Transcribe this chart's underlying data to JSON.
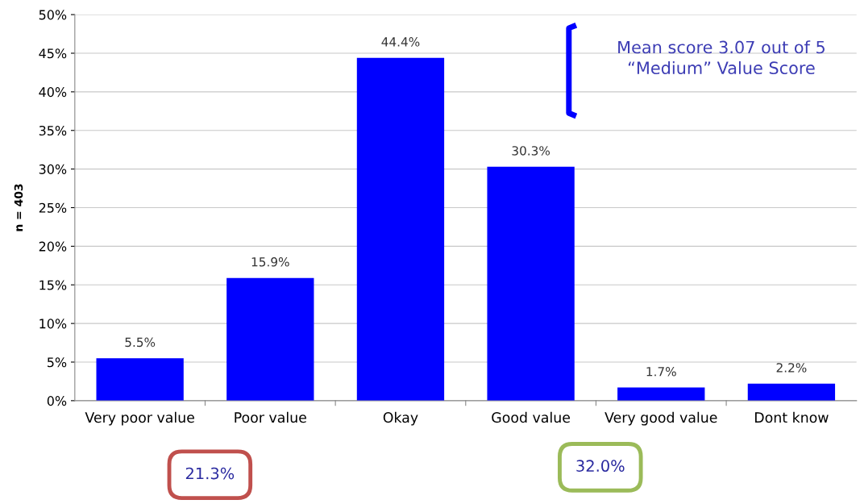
{
  "chart_data": {
    "type": "bar",
    "ylabel": "n = 403",
    "categories": [
      "Very poor value",
      "Poor value",
      "Okay",
      "Good value",
      "Very good value",
      "Dont know"
    ],
    "series": [
      {
        "color": "#0000ff",
        "values": [
          5.5,
          15.9,
          44.4,
          30.3,
          1.7,
          2.2
        ],
        "value_labels": [
          "5.5%",
          "15.9%",
          "44.4%",
          "30.3%",
          "1.7%",
          "2.2%"
        ]
      }
    ],
    "ylim": [
      0,
      50
    ],
    "yticks": [
      {
        "value": 0,
        "label": "0%"
      },
      {
        "value": 5,
        "label": "5%"
      },
      {
        "value": 10,
        "label": "10%"
      },
      {
        "value": 15,
        "label": "15%"
      },
      {
        "value": 20,
        "label": "20%"
      },
      {
        "value": 25,
        "label": "25%"
      },
      {
        "value": 30,
        "label": "30%"
      },
      {
        "value": 35,
        "label": "35%"
      },
      {
        "value": 40,
        "label": "40%"
      },
      {
        "value": 45,
        "label": "45%"
      },
      {
        "value": 50,
        "label": "50%"
      }
    ],
    "grid": "y",
    "annotations": [
      "Mean score 3.07 out of 5\n“Medium” Value Score",
      "21.3%",
      "32.0%"
    ]
  }
}
